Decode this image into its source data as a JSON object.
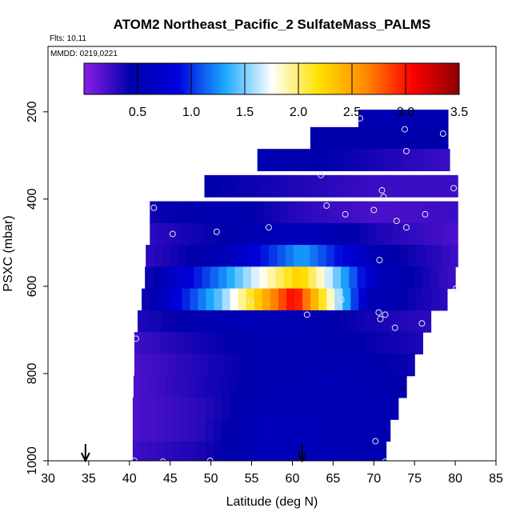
{
  "chart_data": {
    "type": "heatmap",
    "title": "ATOM2 Northeast_Pacific_2 SulfateMass_PALMS",
    "annotations": [
      "Flts: 10,11",
      "MMDD: 0219,0221"
    ],
    "xlabel": "Latitude (deg N)",
    "ylabel": "PSXC (mbar)",
    "xlim": [
      30,
      85
    ],
    "ylim": [
      1000,
      50
    ],
    "y_reversed": true,
    "x_ticks": [
      "30",
      "35",
      "40",
      "45",
      "50",
      "55",
      "60",
      "65",
      "70",
      "75",
      "80",
      "85"
    ],
    "y_ticks": [
      "200",
      "400",
      "600",
      "800",
      "1000"
    ],
    "colorbar": {
      "range": [
        0,
        3.5
      ],
      "ticks": [
        "0.5",
        "1.0",
        "1.5",
        "2.0",
        "2.5",
        "3.0",
        "3.5"
      ],
      "stops": [
        "#8a1ee6",
        "#0000aa",
        "#0000dd",
        "#1aa8ff",
        "#ffffff",
        "#ffe200",
        "#ff8a00",
        "#ff0000",
        "#8b0000"
      ],
      "tick_values": [
        0.5,
        1.0,
        1.5,
        2.0,
        2.5,
        3.0,
        3.5
      ]
    },
    "rows": [
      {
        "p": 220,
        "x0": 68.1,
        "x1": 79.1,
        "values": [
          0.5,
          0.5
        ]
      },
      {
        "p": 260,
        "x0": 62.2,
        "x1": 79.1,
        "values": [
          0.45,
          0.45
        ]
      },
      {
        "p": 310,
        "x0": 55.7,
        "x1": 79.3,
        "values": [
          0.5,
          0.4,
          0.25
        ]
      },
      {
        "p": 370,
        "x0": 49.2,
        "x1": 80.3,
        "values": [
          0.45,
          0.35,
          0.25,
          0.25
        ]
      },
      {
        "p": 430,
        "x0": 42.5,
        "x1": 80.3,
        "values": [
          0.4,
          0.5,
          0.3,
          0.2,
          0.25
        ]
      },
      {
        "p": 480,
        "x0": 42.5,
        "x1": 80.3,
        "values": [
          0.3,
          0.45,
          0.6,
          0.35,
          0.2
        ]
      },
      {
        "p": 530,
        "x0": 42.0,
        "x1": 80.3,
        "values": [
          0.3,
          0.55,
          1.3,
          0.5,
          0.25
        ]
      },
      {
        "p": 580,
        "x0": 41.9,
        "x1": 80.0,
        "values": [
          0.4,
          1.25,
          2.3,
          0.6,
          0.25
        ]
      },
      {
        "p": 630,
        "x0": 41.5,
        "x1": 79.0,
        "values": [
          0.4,
          1.45,
          3.1,
          0.55,
          0.3
        ]
      },
      {
        "p": 680,
        "x0": 41.0,
        "x1": 77.0,
        "values": [
          0.35,
          0.5,
          0.55,
          0.4,
          0.3
        ]
      },
      {
        "p": 730,
        "x0": 40.6,
        "x1": 76.0,
        "values": [
          0.25,
          0.4,
          0.5,
          0.45,
          0.35
        ]
      },
      {
        "p": 780,
        "x0": 40.6,
        "x1": 75.0,
        "values": [
          0.2,
          0.35,
          0.5,
          0.5,
          0.4
        ]
      },
      {
        "p": 830,
        "x0": 40.5,
        "x1": 74.0,
        "values": [
          0.2,
          0.35,
          0.5,
          0.55,
          0.45
        ]
      },
      {
        "p": 880,
        "x0": 40.4,
        "x1": 73.0,
        "values": [
          0.2,
          0.3,
          0.55,
          0.55,
          0.5
        ]
      },
      {
        "p": 930,
        "x0": 40.4,
        "x1": 72.0,
        "values": [
          0.2,
          0.3,
          0.6,
          0.55,
          0.5
        ]
      },
      {
        "p": 980,
        "x0": 40.4,
        "x1": 71.5,
        "values": [
          0.25,
          0.35,
          0.55,
          0.55,
          0.5
        ]
      }
    ],
    "points": [
      {
        "x": 68.3,
        "y": 215
      },
      {
        "x": 73.8,
        "y": 240
      },
      {
        "x": 78.5,
        "y": 250
      },
      {
        "x": 74.0,
        "y": 290
      },
      {
        "x": 63.5,
        "y": 345
      },
      {
        "x": 79.8,
        "y": 375
      },
      {
        "x": 71.0,
        "y": 380
      },
      {
        "x": 71.2,
        "y": 395
      },
      {
        "x": 64.2,
        "y": 415
      },
      {
        "x": 43.0,
        "y": 420
      },
      {
        "x": 70.0,
        "y": 425
      },
      {
        "x": 66.5,
        "y": 435
      },
      {
        "x": 76.3,
        "y": 435
      },
      {
        "x": 72.8,
        "y": 450
      },
      {
        "x": 74.0,
        "y": 465
      },
      {
        "x": 57.1,
        "y": 465
      },
      {
        "x": 50.7,
        "y": 475
      },
      {
        "x": 45.3,
        "y": 480
      },
      {
        "x": 70.7,
        "y": 540
      },
      {
        "x": 54.9,
        "y": 635
      },
      {
        "x": 66.0,
        "y": 630
      },
      {
        "x": 80.1,
        "y": 605
      },
      {
        "x": 61.8,
        "y": 665
      },
      {
        "x": 70.6,
        "y": 660
      },
      {
        "x": 71.4,
        "y": 665
      },
      {
        "x": 70.8,
        "y": 675
      },
      {
        "x": 72.6,
        "y": 695
      },
      {
        "x": 75.9,
        "y": 685
      },
      {
        "x": 40.8,
        "y": 720
      },
      {
        "x": 70.2,
        "y": 955
      },
      {
        "x": 40.6,
        "y": 1000
      },
      {
        "x": 44.1,
        "y": 1002
      },
      {
        "x": 49.9,
        "y": 1000
      },
      {
        "x": 71.4,
        "y": 1002
      }
    ],
    "arrows": [
      {
        "x": 34.6,
        "label": ""
      },
      {
        "x": 61.2,
        "label": ""
      }
    ]
  }
}
